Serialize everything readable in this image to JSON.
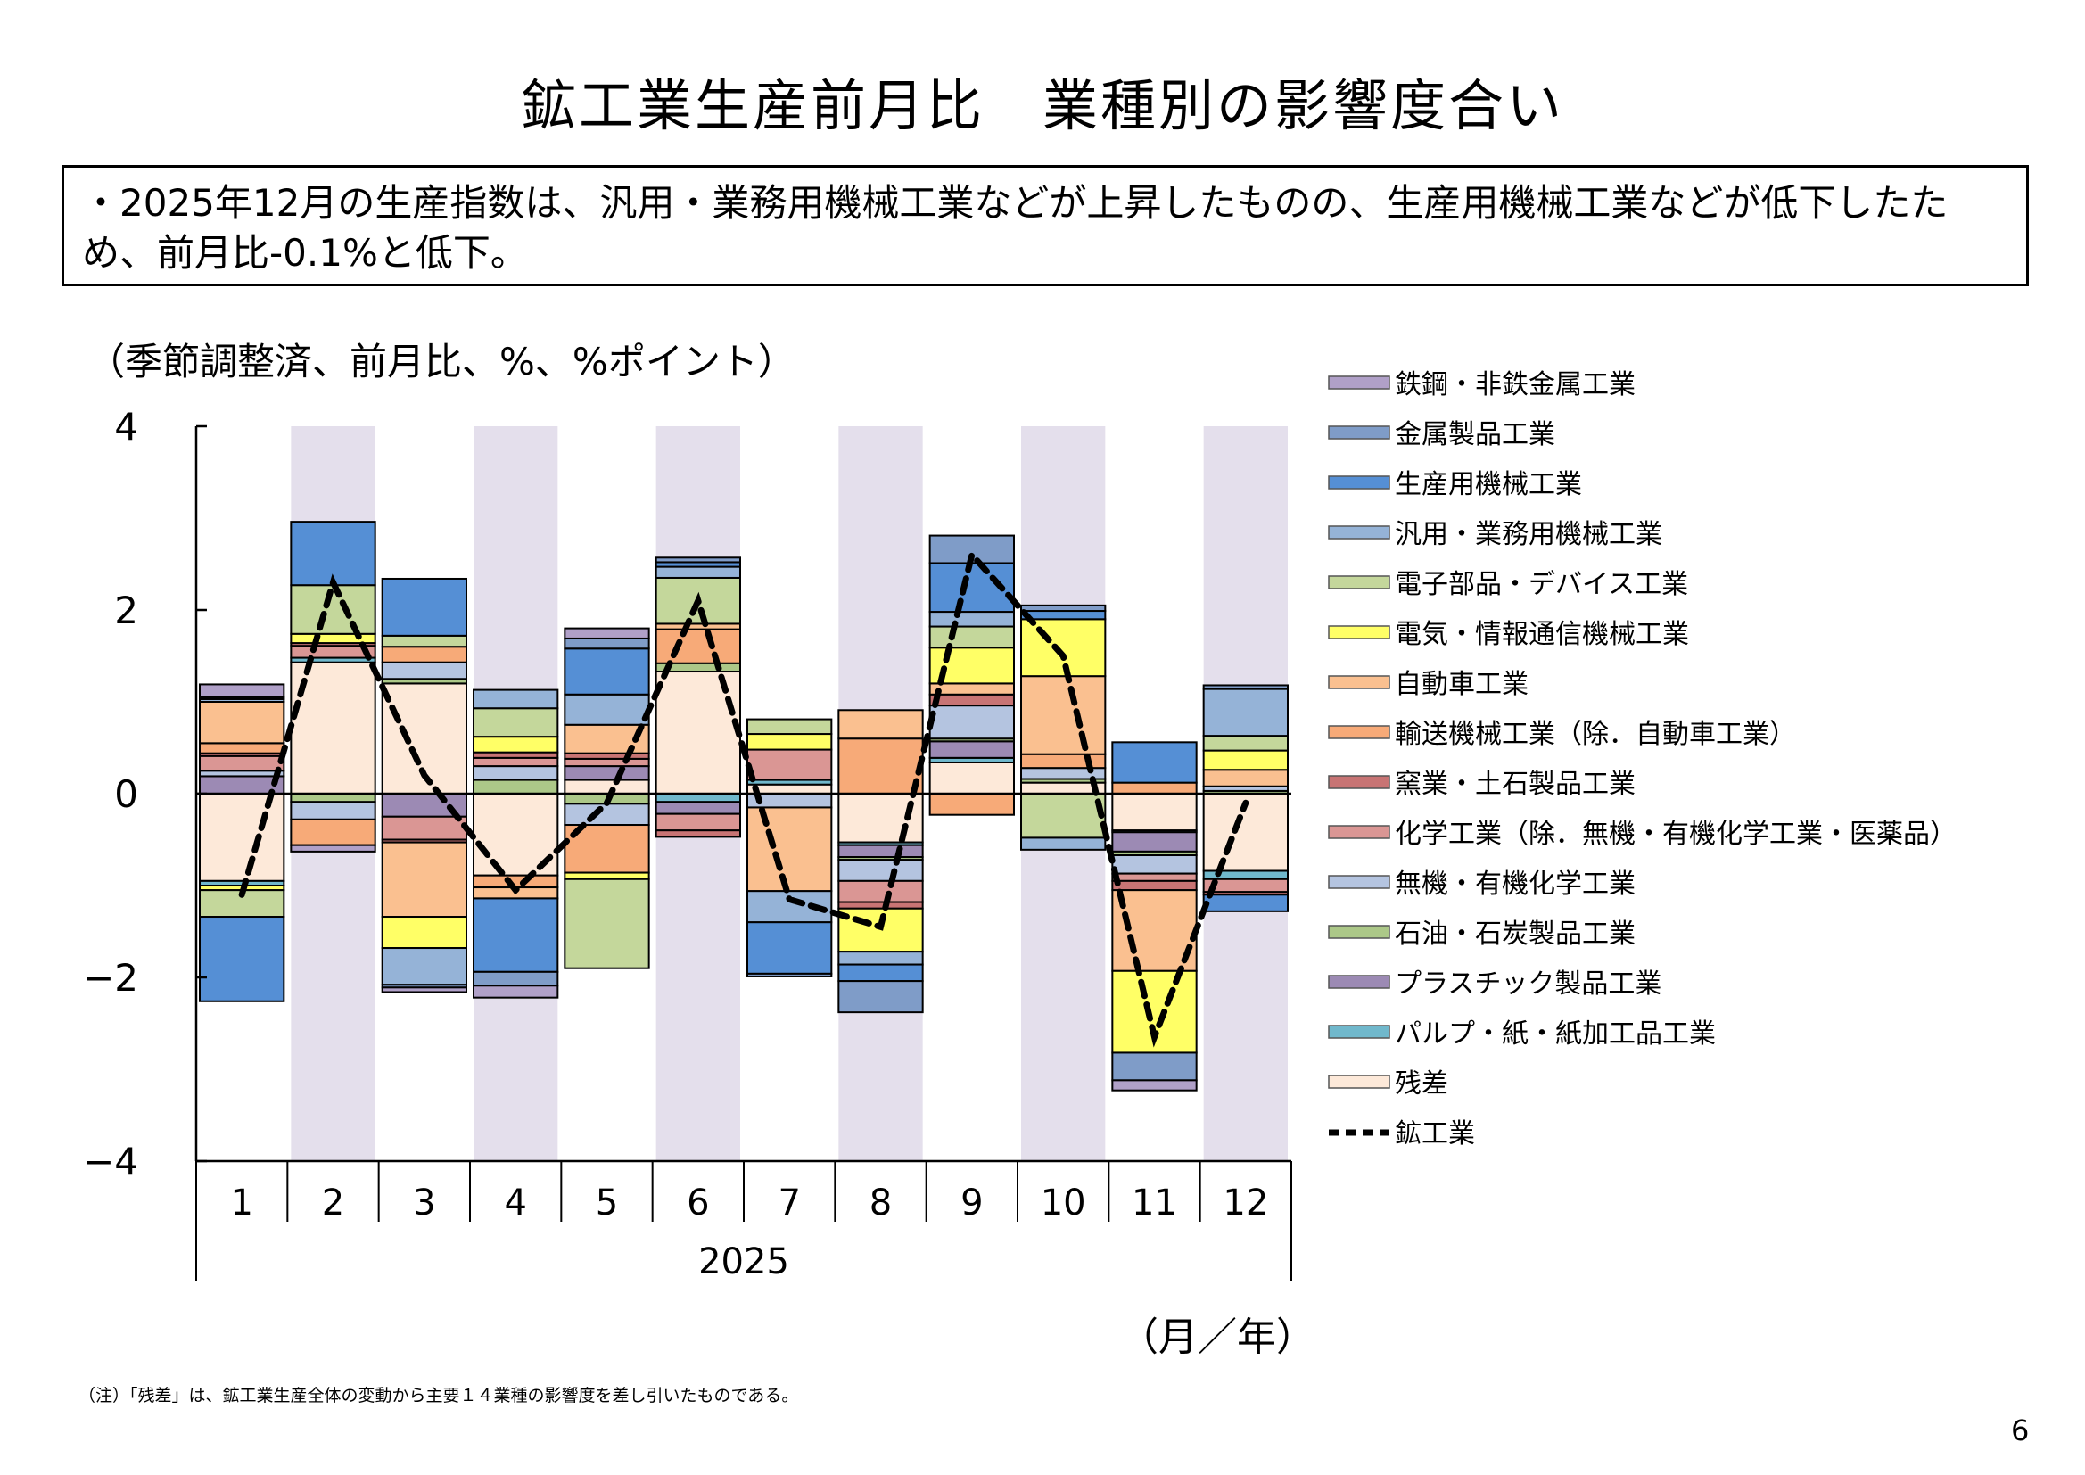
{
  "title": "鉱工業生産前月比　業種別の影響度合い",
  "summary": "・2025年12月の生産指数は、汎用・業務用機械工業などが上昇したものの、生産用機械工業などが低下したため、前月比-0.1%と低下。",
  "units_note": "（季節調整済、前月比、%、%ポイント）",
  "footnote": "（注）「残差」は、鉱工業生産全体の変動から主要１４業種の影響度を差し引いたものである。",
  "page_number": "6",
  "chart_data": {
    "type": "bar",
    "stacked": true,
    "x_axis_label": "（月／年）",
    "year_label": "2025",
    "categories": [
      "1",
      "2",
      "3",
      "4",
      "5",
      "6",
      "7",
      "8",
      "9",
      "10",
      "11",
      "12"
    ],
    "ylim": [
      -4,
      4
    ],
    "yticks": [
      4,
      2,
      0,
      -2,
      -4
    ],
    "shaded_months": [
      "2",
      "4",
      "6",
      "8",
      "10",
      "12"
    ],
    "shade_color": "#e4dfec",
    "legend_position": "right",
    "series": [
      {
        "name": "鉄鋼・非鉄金属工業",
        "color": "#b0a0c8",
        "values": [
          0.14,
          -0.07,
          -0.05,
          -0.13,
          0.11,
          0,
          0,
          0,
          0,
          0,
          -0.11,
          0
        ]
      },
      {
        "name": "金属製品工業",
        "color": "#7f9cc8",
        "values": [
          0.02,
          0,
          -0.03,
          -0.15,
          0.11,
          0.05,
          -0.03,
          -0.34,
          0.3,
          0.06,
          -0.3,
          0.04
        ]
      },
      {
        "name": "生産用機械工業",
        "color": "#558fd5",
        "values": [
          -0.92,
          0.69,
          0.62,
          -0.8,
          0.5,
          0.05,
          -0.56,
          -0.18,
          0.53,
          0.09,
          0.44,
          -0.18
        ]
      },
      {
        "name": "汎用・業務用機械工業",
        "color": "#95b3d7",
        "values": [
          0.03,
          0,
          -0.4,
          0.2,
          0.33,
          0.12,
          -0.34,
          -0.14,
          0.16,
          -0.13,
          0,
          0.51
        ]
      },
      {
        "name": "電子部品・デバイス工業",
        "color": "#c4d79b",
        "values": [
          -0.29,
          0.53,
          0.12,
          0.31,
          -0.97,
          0.5,
          0.16,
          0,
          0.23,
          -0.48,
          0,
          0.16
        ]
      },
      {
        "name": "電気・情報通信機械工業",
        "color": "#ffff66",
        "values": [
          -0.05,
          0.1,
          -0.34,
          0.17,
          -0.07,
          0,
          0.17,
          -0.47,
          0.39,
          0.62,
          -0.89,
          0.21
        ]
      },
      {
        "name": "自動車工業",
        "color": "#fac090",
        "values": [
          0.45,
          0,
          -0.81,
          -0.12,
          0.31,
          0.06,
          -0.91,
          0.31,
          0.12,
          0.85,
          -0.88,
          0.18
        ]
      },
      {
        "name": "輸送機械工業（除．自動車工業）",
        "color": "#f7aa78",
        "values": [
          0.11,
          -0.28,
          0.17,
          -0.13,
          -0.52,
          0.37,
          0,
          0.6,
          -0.23,
          0.15,
          0.12,
          0
        ]
      },
      {
        "name": "窯業・土石製品工業",
        "color": "#c87474",
        "values": [
          0.03,
          0.03,
          -0.03,
          0.06,
          0.06,
          -0.07,
          0,
          -0.07,
          0.12,
          0,
          -0.1,
          -0.03
        ]
      },
      {
        "name": "化学工業（除．無機・有機化学工業・医薬品）",
        "color": "#da9694",
        "values": [
          0.16,
          0.13,
          -0.25,
          0.09,
          0.08,
          -0.18,
          0.33,
          -0.23,
          0,
          0,
          -0.08,
          -0.14
        ]
      },
      {
        "name": "無機・有機化学工業",
        "color": "#b4c4e0",
        "values": [
          0.06,
          -0.19,
          0.18,
          0.15,
          -0.23,
          0,
          -0.15,
          -0.23,
          0.36,
          0.12,
          -0.2,
          0.05
        ]
      },
      {
        "name": "石油・石炭製品工業",
        "color": "#acc888",
        "values": [
          0,
          -0.09,
          0.05,
          0.15,
          -0.11,
          0.09,
          0,
          -0.03,
          0.03,
          0.04,
          -0.04,
          0.03
        ]
      },
      {
        "name": "プラスチック製品工業",
        "color": "#9c8ab4",
        "values": [
          0.19,
          0,
          -0.25,
          0,
          0.15,
          -0.13,
          0,
          -0.13,
          0.18,
          0,
          -0.21,
          0
        ]
      },
      {
        "name": "パルプ・紙・紙加工品工業",
        "color": "#70b8cc",
        "values": [
          -0.05,
          0.05,
          0,
          0,
          0,
          -0.09,
          0.05,
          -0.03,
          0.05,
          0,
          -0.02,
          -0.09
        ]
      },
      {
        "name": "残差",
        "color": "#fde9d9",
        "values": [
          -0.95,
          1.43,
          1.2,
          -0.89,
          0.15,
          1.33,
          0.1,
          -0.53,
          0.34,
          0.12,
          -0.4,
          -0.84
        ]
      }
    ],
    "line": {
      "name": "鉱工業",
      "color": "#000000",
      "style": "dashed",
      "values": [
        -1.1,
        2.3,
        0.2,
        -1.05,
        -0.1,
        2.1,
        -1.15,
        -1.45,
        2.6,
        1.5,
        -2.65,
        -0.1
      ]
    }
  }
}
